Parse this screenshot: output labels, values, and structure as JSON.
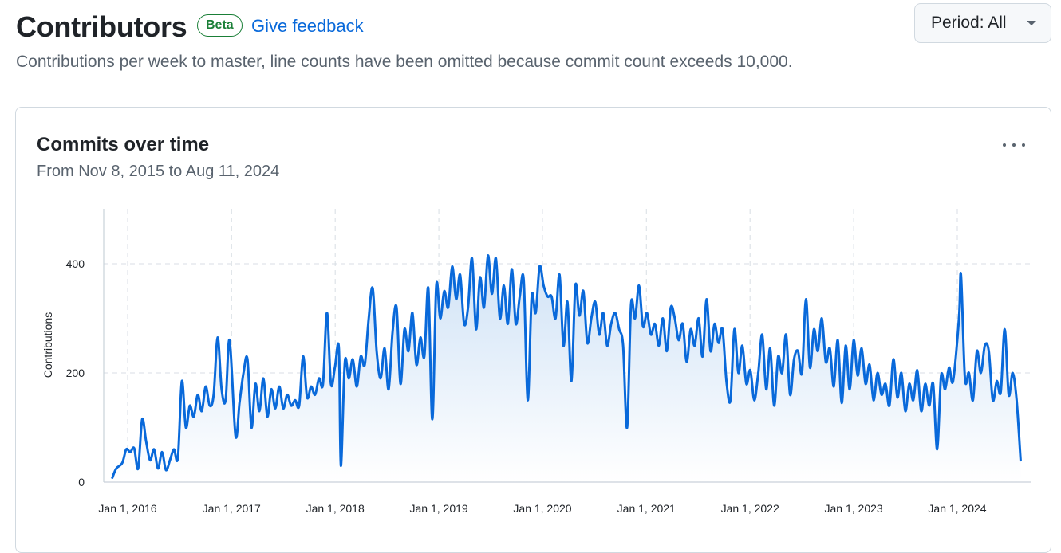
{
  "header": {
    "title": "Contributors",
    "badge": "Beta",
    "feedback_link": "Give feedback",
    "period_button": "Period: All",
    "description": "Contributions per week to master, line counts have been omitted because commit count exceeds 10,000."
  },
  "card": {
    "title": "Commits over time",
    "range": "From Nov 8, 2015 to Aug 11, 2024",
    "menu_icon": "kebab-horizontal-icon"
  },
  "colors": {
    "line": "#0969da",
    "fill_top": "#cfe2f6",
    "grid": "#d8dee4",
    "badge": "#1a7f37",
    "link": "#0969da"
  },
  "chart_data": {
    "type": "area",
    "title": "Commits over time",
    "xlabel": "",
    "ylabel": "Contributions",
    "ylim": [
      0,
      500
    ],
    "xlim": [
      "2015-11-08",
      "2024-08-11"
    ],
    "grid": true,
    "x_ticks": [
      "Jan 1, 2016",
      "Jan 1, 2017",
      "Jan 1, 2018",
      "Jan 1, 2019",
      "Jan 1, 2020",
      "Jan 1, 2021",
      "Jan 1, 2022",
      "Jan 1, 2023",
      "Jan 1, 2024"
    ],
    "x_tick_dates": [
      "2016-01-01",
      "2017-01-01",
      "2018-01-01",
      "2019-01-01",
      "2020-01-01",
      "2021-01-01",
      "2022-01-01",
      "2023-01-01",
      "2024-01-01"
    ],
    "y_ticks": [
      0,
      200,
      400
    ],
    "series": [
      {
        "values": [
          [
            "2015-11-08",
            8
          ],
          [
            "2015-11-22",
            25
          ],
          [
            "2015-12-13",
            35
          ],
          [
            "2015-12-27",
            60
          ],
          [
            "2016-01-10",
            55
          ],
          [
            "2016-01-24",
            62
          ],
          [
            "2016-02-07",
            25
          ],
          [
            "2016-02-21",
            115
          ],
          [
            "2016-03-06",
            75
          ],
          [
            "2016-03-20",
            40
          ],
          [
            "2016-04-03",
            60
          ],
          [
            "2016-04-17",
            25
          ],
          [
            "2016-05-01",
            55
          ],
          [
            "2016-05-15",
            22
          ],
          [
            "2016-05-29",
            40
          ],
          [
            "2016-06-12",
            60
          ],
          [
            "2016-06-26",
            45
          ],
          [
            "2016-07-10",
            185
          ],
          [
            "2016-07-24",
            100
          ],
          [
            "2016-08-07",
            140
          ],
          [
            "2016-08-21",
            120
          ],
          [
            "2016-09-04",
            160
          ],
          [
            "2016-09-18",
            130
          ],
          [
            "2016-10-02",
            175
          ],
          [
            "2016-10-16",
            140
          ],
          [
            "2016-10-30",
            160
          ],
          [
            "2016-11-13",
            265
          ],
          [
            "2016-11-27",
            170
          ],
          [
            "2016-12-11",
            150
          ],
          [
            "2016-12-25",
            260
          ],
          [
            "2017-01-15",
            85
          ],
          [
            "2017-01-29",
            145
          ],
          [
            "2017-02-12",
            200
          ],
          [
            "2017-02-26",
            225
          ],
          [
            "2017-03-12",
            100
          ],
          [
            "2017-03-26",
            180
          ],
          [
            "2017-04-09",
            130
          ],
          [
            "2017-04-23",
            190
          ],
          [
            "2017-05-07",
            120
          ],
          [
            "2017-05-21",
            170
          ],
          [
            "2017-06-04",
            135
          ],
          [
            "2017-06-18",
            175
          ],
          [
            "2017-07-02",
            135
          ],
          [
            "2017-07-16",
            160
          ],
          [
            "2017-07-30",
            140
          ],
          [
            "2017-08-13",
            150
          ],
          [
            "2017-08-27",
            140
          ],
          [
            "2017-09-10",
            230
          ],
          [
            "2017-09-24",
            155
          ],
          [
            "2017-10-08",
            175
          ],
          [
            "2017-10-22",
            160
          ],
          [
            "2017-11-05",
            190
          ],
          [
            "2017-11-19",
            180
          ],
          [
            "2017-12-03",
            310
          ],
          [
            "2017-12-17",
            180
          ],
          [
            "2017-12-31",
            210
          ],
          [
            "2018-01-14",
            245
          ],
          [
            "2018-01-21",
            30
          ],
          [
            "2018-02-04",
            220
          ],
          [
            "2018-02-18",
            190
          ],
          [
            "2018-03-04",
            225
          ],
          [
            "2018-03-18",
            175
          ],
          [
            "2018-04-01",
            230
          ],
          [
            "2018-04-15",
            215
          ],
          [
            "2018-04-29",
            300
          ],
          [
            "2018-05-13",
            355
          ],
          [
            "2018-05-27",
            240
          ],
          [
            "2018-06-10",
            190
          ],
          [
            "2018-06-24",
            245
          ],
          [
            "2018-07-08",
            170
          ],
          [
            "2018-07-22",
            275
          ],
          [
            "2018-08-05",
            320
          ],
          [
            "2018-08-19",
            180
          ],
          [
            "2018-09-02",
            280
          ],
          [
            "2018-09-16",
            240
          ],
          [
            "2018-09-30",
            310
          ],
          [
            "2018-10-14",
            215
          ],
          [
            "2018-10-28",
            265
          ],
          [
            "2018-11-11",
            230
          ],
          [
            "2018-11-25",
            355
          ],
          [
            "2018-12-09",
            115
          ],
          [
            "2018-12-23",
            360
          ],
          [
            "2019-01-06",
            300
          ],
          [
            "2019-01-20",
            350
          ],
          [
            "2019-02-03",
            320
          ],
          [
            "2019-02-17",
            395
          ],
          [
            "2019-03-03",
            335
          ],
          [
            "2019-03-17",
            380
          ],
          [
            "2019-03-31",
            290
          ],
          [
            "2019-04-14",
            320
          ],
          [
            "2019-04-28",
            410
          ],
          [
            "2019-05-12",
            280
          ],
          [
            "2019-05-26",
            375
          ],
          [
            "2019-06-09",
            320
          ],
          [
            "2019-06-23",
            415
          ],
          [
            "2019-07-07",
            345
          ],
          [
            "2019-07-21",
            410
          ],
          [
            "2019-08-04",
            300
          ],
          [
            "2019-08-18",
            360
          ],
          [
            "2019-09-01",
            290
          ],
          [
            "2019-09-15",
            390
          ],
          [
            "2019-09-29",
            290
          ],
          [
            "2019-10-13",
            340
          ],
          [
            "2019-10-27",
            370
          ],
          [
            "2019-11-10",
            150
          ],
          [
            "2019-11-24",
            340
          ],
          [
            "2019-12-08",
            310
          ],
          [
            "2019-12-22",
            395
          ],
          [
            "2020-01-05",
            360
          ],
          [
            "2020-01-19",
            340
          ],
          [
            "2020-02-02",
            340
          ],
          [
            "2020-02-16",
            300
          ],
          [
            "2020-03-01",
            380
          ],
          [
            "2020-03-15",
            250
          ],
          [
            "2020-03-29",
            330
          ],
          [
            "2020-04-12",
            185
          ],
          [
            "2020-04-26",
            360
          ],
          [
            "2020-05-10",
            305
          ],
          [
            "2020-05-24",
            350
          ],
          [
            "2020-06-07",
            255
          ],
          [
            "2020-06-21",
            300
          ],
          [
            "2020-07-05",
            330
          ],
          [
            "2020-07-19",
            270
          ],
          [
            "2020-08-02",
            310
          ],
          [
            "2020-08-16",
            250
          ],
          [
            "2020-08-30",
            290
          ],
          [
            "2020-09-13",
            310
          ],
          [
            "2020-09-27",
            280
          ],
          [
            "2020-10-11",
            250
          ],
          [
            "2020-10-25",
            100
          ],
          [
            "2020-11-08",
            325
          ],
          [
            "2020-11-22",
            300
          ],
          [
            "2020-12-06",
            360
          ],
          [
            "2020-12-20",
            285
          ],
          [
            "2021-01-03",
            310
          ],
          [
            "2021-01-17",
            270
          ],
          [
            "2021-01-31",
            290
          ],
          [
            "2021-02-14",
            250
          ],
          [
            "2021-02-28",
            300
          ],
          [
            "2021-03-14",
            240
          ],
          [
            "2021-03-28",
            320
          ],
          [
            "2021-04-11",
            300
          ],
          [
            "2021-04-25",
            260
          ],
          [
            "2021-05-09",
            290
          ],
          [
            "2021-05-23",
            220
          ],
          [
            "2021-06-06",
            280
          ],
          [
            "2021-06-20",
            250
          ],
          [
            "2021-07-04",
            300
          ],
          [
            "2021-07-18",
            230
          ],
          [
            "2021-08-01",
            335
          ],
          [
            "2021-08-15",
            240
          ],
          [
            "2021-08-29",
            290
          ],
          [
            "2021-09-12",
            255
          ],
          [
            "2021-09-26",
            280
          ],
          [
            "2021-10-10",
            185
          ],
          [
            "2021-10-24",
            150
          ],
          [
            "2021-11-07",
            280
          ],
          [
            "2021-11-21",
            200
          ],
          [
            "2021-12-05",
            250
          ],
          [
            "2021-12-19",
            180
          ],
          [
            "2022-01-02",
            205
          ],
          [
            "2022-01-16",
            150
          ],
          [
            "2022-01-30",
            200
          ],
          [
            "2022-02-13",
            270
          ],
          [
            "2022-02-27",
            170
          ],
          [
            "2022-03-13",
            245
          ],
          [
            "2022-03-27",
            140
          ],
          [
            "2022-04-10",
            230
          ],
          [
            "2022-04-24",
            200
          ],
          [
            "2022-05-08",
            270
          ],
          [
            "2022-05-22",
            160
          ],
          [
            "2022-06-05",
            225
          ],
          [
            "2022-06-19",
            240
          ],
          [
            "2022-07-03",
            200
          ],
          [
            "2022-07-17",
            335
          ],
          [
            "2022-07-31",
            210
          ],
          [
            "2022-08-14",
            280
          ],
          [
            "2022-08-28",
            240
          ],
          [
            "2022-09-11",
            300
          ],
          [
            "2022-09-25",
            220
          ],
          [
            "2022-10-09",
            245
          ],
          [
            "2022-10-23",
            175
          ],
          [
            "2022-11-06",
            260
          ],
          [
            "2022-11-20",
            145
          ],
          [
            "2022-12-04",
            250
          ],
          [
            "2022-12-18",
            170
          ],
          [
            "2023-01-01",
            260
          ],
          [
            "2023-01-15",
            195
          ],
          [
            "2023-01-29",
            245
          ],
          [
            "2023-02-12",
            180
          ],
          [
            "2023-02-26",
            215
          ],
          [
            "2023-03-12",
            150
          ],
          [
            "2023-03-26",
            200
          ],
          [
            "2023-04-09",
            160
          ],
          [
            "2023-04-23",
            180
          ],
          [
            "2023-05-07",
            140
          ],
          [
            "2023-05-21",
            225
          ],
          [
            "2023-06-04",
            155
          ],
          [
            "2023-06-18",
            200
          ],
          [
            "2023-07-02",
            130
          ],
          [
            "2023-07-16",
            180
          ],
          [
            "2023-07-30",
            150
          ],
          [
            "2023-08-13",
            205
          ],
          [
            "2023-08-27",
            130
          ],
          [
            "2023-09-10",
            180
          ],
          [
            "2023-09-24",
            140
          ],
          [
            "2023-10-08",
            180
          ],
          [
            "2023-10-22",
            60
          ],
          [
            "2023-11-05",
            195
          ],
          [
            "2023-11-19",
            170
          ],
          [
            "2023-12-03",
            210
          ],
          [
            "2023-12-17",
            185
          ],
          [
            "2024-01-07",
            300
          ],
          [
            "2024-01-14",
            380
          ],
          [
            "2024-01-28",
            190
          ],
          [
            "2024-02-11",
            200
          ],
          [
            "2024-02-25",
            150
          ],
          [
            "2024-03-10",
            240
          ],
          [
            "2024-03-24",
            200
          ],
          [
            "2024-04-07",
            250
          ],
          [
            "2024-04-21",
            240
          ],
          [
            "2024-05-05",
            150
          ],
          [
            "2024-05-19",
            185
          ],
          [
            "2024-06-02",
            165
          ],
          [
            "2024-06-16",
            280
          ],
          [
            "2024-06-30",
            160
          ],
          [
            "2024-07-14",
            200
          ],
          [
            "2024-07-28",
            150
          ],
          [
            "2024-08-11",
            40
          ]
        ]
      }
    ]
  }
}
